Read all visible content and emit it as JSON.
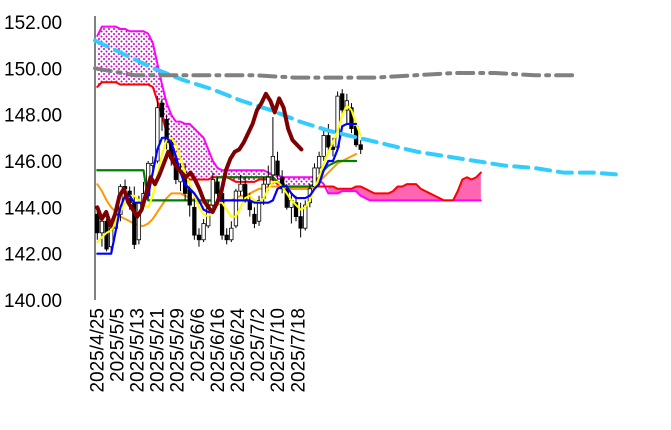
{
  "chart_data": {
    "type": "candlestick",
    "ylim": [
      140,
      152
    ],
    "y_ticks": [
      "152.00",
      "150.00",
      "148.00",
      "146.00",
      "144.00",
      "142.00",
      "140.00"
    ],
    "x_tick_labels": [
      "2025/4/25",
      "2025/5/5",
      "2025/5/13",
      "2025/5/21",
      "2025/5/29",
      "2025/6/6",
      "2025/6/16",
      "2025/6/24",
      "2025/7/2",
      "2025/7/10",
      "2025/7/18"
    ],
    "grid": "none",
    "legend": "none",
    "colors": {
      "up_candle": "#ffffff",
      "down_candle": "#000000",
      "cloud": "#cc00cc",
      "leading_span_a": "#ff0000",
      "leading_span_b": "#ff00ff",
      "lagging_span": "#7f0000",
      "conversion_line": "#0000ff",
      "base_line": "#008000",
      "ma_short": "#ffff00",
      "ma_long": "#ff9900",
      "ma_trend": "#33ccff",
      "resistance": "#808080"
    },
    "n_slots": 124,
    "candles": [
      [
        143.7,
        143.9,
        142.6,
        142.9
      ],
      [
        142.9,
        143.6,
        142.3,
        143.4
      ],
      [
        143.4,
        143.5,
        142.1,
        142.2
      ],
      [
        142.3,
        143.2,
        142.0,
        143.1
      ],
      [
        143.1,
        143.8,
        143.0,
        143.7
      ],
      [
        143.7,
        145.0,
        143.4,
        144.9
      ],
      [
        144.9,
        145.2,
        144.6,
        144.8
      ],
      [
        144.7,
        144.9,
        143.9,
        144.2
      ],
      [
        144.2,
        144.9,
        142.2,
        142.4
      ],
      [
        142.6,
        144.5,
        142.4,
        144.2
      ],
      [
        144.2,
        145.1,
        144.0,
        144.6
      ],
      [
        144.5,
        146.0,
        144.4,
        145.9
      ],
      [
        145.8,
        146.2,
        145.4,
        145.9
      ],
      [
        146.0,
        148.8,
        145.9,
        148.3
      ],
      [
        148.5,
        148.7,
        147.3,
        147.9
      ],
      [
        147.8,
        148.0,
        146.5,
        146.8
      ],
      [
        146.8,
        147.1,
        145.8,
        146.1
      ],
      [
        146.1,
        146.3,
        145.0,
        145.2
      ],
      [
        145.1,
        145.9,
        144.7,
        145.6
      ],
      [
        145.5,
        145.9,
        144.3,
        144.6
      ],
      [
        144.8,
        145.0,
        143.6,
        144.1
      ],
      [
        144.0,
        144.5,
        142.6,
        142.8
      ],
      [
        142.8,
        143.1,
        142.3,
        142.6
      ],
      [
        142.6,
        143.5,
        142.5,
        143.3
      ],
      [
        143.2,
        144.3,
        143.1,
        144.1
      ],
      [
        144.1,
        145.5,
        143.9,
        145.2
      ],
      [
        145.1,
        145.3,
        144.3,
        144.6
      ],
      [
        144.6,
        144.7,
        142.6,
        142.8
      ],
      [
        142.8,
        143.1,
        142.4,
        142.6
      ],
      [
        142.6,
        143.4,
        142.5,
        143.1
      ],
      [
        143.2,
        144.8,
        143.1,
        144.7
      ],
      [
        144.7,
        145.4,
        144.5,
        145.0
      ],
      [
        145.0,
        145.3,
        144.2,
        144.3
      ],
      [
        144.3,
        144.6,
        143.6,
        143.9
      ],
      [
        143.7,
        144.0,
        143.1,
        143.3
      ],
      [
        143.4,
        144.5,
        143.2,
        144.3
      ],
      [
        144.4,
        145.3,
        144.1,
        145.0
      ],
      [
        145.0,
        145.8,
        144.7,
        145.3
      ],
      [
        145.4,
        147.9,
        145.0,
        146.2
      ],
      [
        146.0,
        146.4,
        145.2,
        145.4
      ],
      [
        145.3,
        145.6,
        144.6,
        144.8
      ],
      [
        144.8,
        145.0,
        143.9,
        144.0
      ],
      [
        144.0,
        144.6,
        143.3,
        144.3
      ],
      [
        144.2,
        144.5,
        143.4,
        143.6
      ],
      [
        143.6,
        144.2,
        142.7,
        143.1
      ],
      [
        143.1,
        144.3,
        143.0,
        144.1
      ],
      [
        144.2,
        145.0,
        144.0,
        144.8
      ],
      [
        144.9,
        145.9,
        144.8,
        145.7
      ],
      [
        145.7,
        146.4,
        145.4,
        146.2
      ],
      [
        146.2,
        147.3,
        146.0,
        147.1
      ],
      [
        147.1,
        147.6,
        146.4,
        146.6
      ],
      [
        146.6,
        147.0,
        146.2,
        146.5
      ],
      [
        146.6,
        149.0,
        146.5,
        148.8
      ],
      [
        148.9,
        149.1,
        148.0,
        148.2
      ],
      [
        148.2,
        148.9,
        147.6,
        148.6
      ],
      [
        148.3,
        148.5,
        147.2,
        147.4
      ],
      [
        147.5,
        147.6,
        146.6,
        146.7
      ],
      [
        146.7,
        146.9,
        146.3,
        146.5
      ]
    ],
    "series": [
      {
        "key": "lagging_span",
        "start": 0,
        "values": [
          144.0,
          143.5,
          143.8,
          143.2,
          143.7,
          144.5,
          144.8,
          144.2,
          143.9,
          143.6,
          143.9,
          144.6,
          145.3,
          145.0,
          145.4,
          145.9,
          146.4,
          146.0,
          145.7,
          145.5,
          145.3,
          145.5,
          145.2,
          144.8,
          144.3,
          144.0,
          143.8,
          144.2,
          144.7,
          145.6,
          146.1,
          146.4,
          146.5,
          146.8,
          147.2,
          147.6,
          148.2,
          148.5,
          148.9,
          148.6,
          148.1,
          148.7,
          148.3,
          147.4,
          146.9,
          146.7,
          146.5
        ]
      },
      {
        "key": "leading_span_a",
        "start": 0,
        "values": [
          149.2,
          149.4,
          149.4,
          149.4,
          149.4,
          149.3,
          149.3,
          149.3,
          149.3,
          149.3,
          149.3,
          149.3,
          149.2,
          148.6,
          148.0,
          147.2,
          146.5,
          145.9,
          145.5,
          145.3,
          145.2,
          145.2,
          145.2,
          145.2,
          145.2,
          145.3,
          145.3,
          145.3,
          145.3,
          145.2,
          145.1,
          145.1,
          145.1,
          145.1,
          145.1,
          145.2,
          145.2,
          145.2,
          145.2,
          145.0,
          144.9,
          144.9,
          144.8,
          144.8,
          144.8,
          144.8,
          144.8,
          144.9,
          144.9,
          144.9,
          144.9,
          144.9,
          144.8,
          144.8,
          144.8,
          144.8,
          144.9,
          144.9,
          144.8,
          144.7,
          144.6,
          144.6,
          144.6,
          144.6,
          144.7,
          144.9,
          144.9,
          145.0,
          145.0,
          145.0,
          144.8,
          144.7,
          144.6,
          144.5,
          144.4,
          144.3,
          144.3,
          144.3,
          144.7,
          145.2,
          145.3,
          145.2,
          145.3,
          145.5
        ]
      },
      {
        "key": "leading_span_b",
        "start": 0,
        "values": [
          151.4,
          151.8,
          151.8,
          151.8,
          151.8,
          151.7,
          151.7,
          151.6,
          151.6,
          151.6,
          151.6,
          151.5,
          151.1,
          150.2,
          149.3,
          148.5,
          148.0,
          147.7,
          147.7,
          147.6,
          147.6,
          147.4,
          147.2,
          147.0,
          146.5,
          146.0,
          145.7,
          145.6,
          145.6,
          145.6,
          145.6,
          145.6,
          145.6,
          145.6,
          145.6,
          145.6,
          145.6,
          145.5,
          145.4,
          145.4,
          145.3,
          145.3,
          145.3,
          145.3,
          145.3,
          145.3,
          145.3,
          145.3,
          145.2,
          145.0,
          144.6,
          144.6,
          144.6,
          144.7,
          144.7,
          144.7,
          144.7,
          144.5,
          144.4,
          144.3,
          144.3,
          144.3,
          144.3,
          144.3,
          144.3,
          144.3,
          144.3,
          144.3,
          144.3,
          144.3,
          144.3,
          144.3,
          144.3,
          144.3,
          144.3,
          144.3,
          144.3,
          144.3,
          144.3,
          144.3,
          144.3,
          144.3,
          144.3,
          144.3
        ]
      },
      {
        "key": "conversion_line",
        "start": 0,
        "values": [
          142.0,
          142.0,
          142.0,
          142.0,
          143.0,
          144.0,
          144.5,
          144.5,
          144.2,
          144.2,
          144.2,
          144.5,
          145.5,
          146.5,
          147.0,
          147.0,
          146.8,
          146.2,
          145.5,
          145.0,
          144.8,
          144.6,
          144.3,
          143.9,
          143.8,
          143.8,
          144.3,
          144.3,
          144.3,
          144.3,
          144.3,
          144.3,
          144.3,
          144.3,
          144.2,
          144.2,
          144.2,
          144.2,
          144.3,
          144.8,
          144.9,
          144.9,
          144.6,
          144.4,
          144.4,
          144.4,
          144.5,
          144.8,
          145.0,
          145.6,
          146.0,
          146.0,
          146.5,
          147.5,
          147.6,
          147.6,
          147.6
        ]
      },
      {
        "key": "base_line",
        "start": 0,
        "values": [
          145.6,
          145.6,
          145.6,
          145.6,
          145.6,
          145.6,
          145.6,
          145.6,
          145.6,
          145.6,
          145.6,
          144.3,
          144.3,
          144.3,
          144.3,
          144.3,
          144.3,
          144.3,
          144.3,
          144.3,
          144.3,
          144.3,
          144.3,
          144.3,
          144.3,
          144.3,
          145.3,
          145.3,
          145.3,
          145.3,
          145.3,
          145.3,
          145.3,
          145.3,
          145.3,
          145.3,
          145.3,
          145.3,
          145.3,
          145.1,
          145.0,
          144.9,
          144.9,
          144.9,
          144.9,
          144.9,
          144.9,
          145.0,
          145.3,
          145.6,
          145.8,
          145.9,
          146.0,
          146.0,
          146.0,
          146.0,
          146.0
        ]
      },
      {
        "key": "ma_short",
        "start": 0,
        "values": [
          142.5,
          142.7,
          142.9,
          143.0,
          143.4,
          143.8,
          144.2,
          144.5,
          144.5,
          144.3,
          144.1,
          144.0,
          144.5,
          145.4,
          146.3,
          146.9,
          147.0,
          146.7,
          146.1,
          145.5,
          145.0,
          144.5,
          144.0,
          143.7,
          143.6,
          143.8,
          144.2,
          144.2,
          143.9,
          143.6,
          143.6,
          144.0,
          144.4,
          144.5,
          144.3,
          144.2,
          144.4,
          144.8,
          145.1,
          145.1,
          144.9,
          144.6,
          144.3,
          144.1,
          143.9,
          144.0,
          144.3,
          144.8,
          145.3,
          145.9,
          146.4,
          146.8,
          147.3,
          148.0,
          148.4,
          148.2,
          147.6,
          147.1
        ]
      },
      {
        "key": "ma_long",
        "start": 0,
        "values": [
          145.0,
          144.7,
          144.3,
          144.0,
          143.8,
          143.6,
          143.5,
          143.4,
          143.3,
          143.2,
          143.2,
          143.3,
          143.5,
          143.8,
          144.1,
          144.4,
          144.6,
          144.6,
          144.6,
          144.5,
          144.4,
          144.3,
          144.2,
          144.2,
          144.1,
          144.1,
          144.1,
          144.2,
          144.3,
          144.3,
          144.4,
          144.5,
          144.5,
          144.6,
          144.7,
          144.8,
          144.8,
          144.9,
          144.9,
          144.9,
          144.9,
          144.9,
          144.8,
          144.8,
          144.8,
          144.8,
          144.8,
          144.9,
          145.1,
          145.3,
          145.5,
          145.7,
          145.9,
          146.0,
          146.1,
          146.2,
          146.3
        ]
      },
      {
        "key": "ma_trend",
        "start": 0,
        "values": [
          151.2,
          150.6,
          150.0,
          149.5,
          149.1,
          148.6,
          148.2,
          147.7,
          147.3,
          147.0,
          146.7,
          146.4,
          146.2,
          146.0,
          145.8,
          145.7,
          145.5,
          145.5,
          145.4
        ]
      },
      {
        "key": "resistance",
        "start": 0,
        "values": [
          150.0,
          149.7,
          149.7,
          149.7,
          149.7,
          149.6,
          149.6,
          149.6,
          149.7,
          149.8,
          149.8,
          149.7,
          149.7
        ]
      }
    ]
  }
}
